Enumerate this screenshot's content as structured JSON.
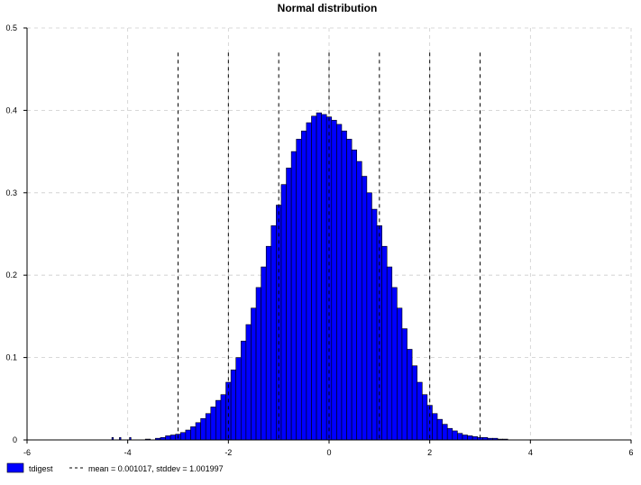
{
  "chart_data": {
    "type": "bar",
    "title": "Normal distribution",
    "xlabel": "",
    "ylabel": "",
    "xlim": [
      -6,
      6
    ],
    "ylim": [
      0,
      0.5
    ],
    "x_ticks": [
      "-6",
      "-4",
      "-2",
      "0",
      "2",
      "4",
      "6"
    ],
    "y_ticks": [
      "0",
      "0.1",
      "0.2",
      "0.3",
      "0.4",
      "0.5"
    ],
    "grid": true,
    "legend_position": "bottom-left",
    "colors": {
      "bar_fill": "#0000ff",
      "bar_stroke": "#000000",
      "grid": "#cccccc"
    },
    "series": [
      {
        "name": "tdigest",
        "x": [
          -4.3,
          -4.15,
          -3.95,
          -3.6,
          -3.4,
          -3.3,
          -3.2,
          -3.1,
          -3.0,
          -2.9,
          -2.8,
          -2.7,
          -2.6,
          -2.5,
          -2.4,
          -2.3,
          -2.2,
          -2.1,
          -2.0,
          -1.9,
          -1.8,
          -1.7,
          -1.6,
          -1.5,
          -1.4,
          -1.3,
          -1.2,
          -1.1,
          -1.0,
          -0.9,
          -0.8,
          -0.7,
          -0.6,
          -0.5,
          -0.4,
          -0.3,
          -0.2,
          -0.1,
          0.0,
          0.1,
          0.2,
          0.3,
          0.4,
          0.5,
          0.6,
          0.7,
          0.8,
          0.9,
          1.0,
          1.1,
          1.2,
          1.3,
          1.4,
          1.5,
          1.6,
          1.7,
          1.8,
          1.9,
          2.0,
          2.1,
          2.2,
          2.3,
          2.4,
          2.5,
          2.6,
          2.7,
          2.8,
          2.9,
          3.0,
          3.1,
          3.2,
          3.3,
          3.4,
          3.5
        ],
        "widths": [
          0.03,
          0.03,
          0.03,
          0.1,
          0.1,
          0.1,
          0.1,
          0.1,
          0.1,
          0.1,
          0.1,
          0.1,
          0.1,
          0.1,
          0.1,
          0.1,
          0.1,
          0.1,
          0.1,
          0.1,
          0.1,
          0.1,
          0.1,
          0.1,
          0.1,
          0.1,
          0.1,
          0.1,
          0.1,
          0.1,
          0.1,
          0.1,
          0.1,
          0.1,
          0.1,
          0.1,
          0.1,
          0.1,
          0.1,
          0.1,
          0.1,
          0.1,
          0.1,
          0.1,
          0.1,
          0.1,
          0.1,
          0.1,
          0.1,
          0.1,
          0.1,
          0.1,
          0.1,
          0.1,
          0.1,
          0.1,
          0.1,
          0.1,
          0.1,
          0.1,
          0.1,
          0.1,
          0.1,
          0.1,
          0.1,
          0.1,
          0.1,
          0.1,
          0.1,
          0.1,
          0.1,
          0.1,
          0.1,
          0.1
        ],
        "values": [
          0.003,
          0.003,
          0.003,
          0.001,
          0.002,
          0.003,
          0.005,
          0.006,
          0.007,
          0.009,
          0.012,
          0.016,
          0.021,
          0.026,
          0.032,
          0.04,
          0.048,
          0.055,
          0.07,
          0.085,
          0.1,
          0.12,
          0.14,
          0.16,
          0.185,
          0.21,
          0.235,
          0.26,
          0.285,
          0.31,
          0.33,
          0.35,
          0.365,
          0.375,
          0.385,
          0.393,
          0.397,
          0.395,
          0.392,
          0.388,
          0.383,
          0.375,
          0.365,
          0.352,
          0.338,
          0.32,
          0.3,
          0.28,
          0.26,
          0.235,
          0.21,
          0.185,
          0.16,
          0.135,
          0.11,
          0.09,
          0.07,
          0.055,
          0.042,
          0.032,
          0.025,
          0.019,
          0.014,
          0.011,
          0.008,
          0.006,
          0.005,
          0.004,
          0.003,
          0.003,
          0.002,
          0.002,
          0.001,
          0.001
        ]
      },
      {
        "name": "mean = 0.001017, stddev = 1.001997",
        "type": "vline",
        "x": [
          -3,
          -2,
          -1,
          0,
          1,
          2,
          3
        ],
        "height": 0.47
      }
    ]
  }
}
